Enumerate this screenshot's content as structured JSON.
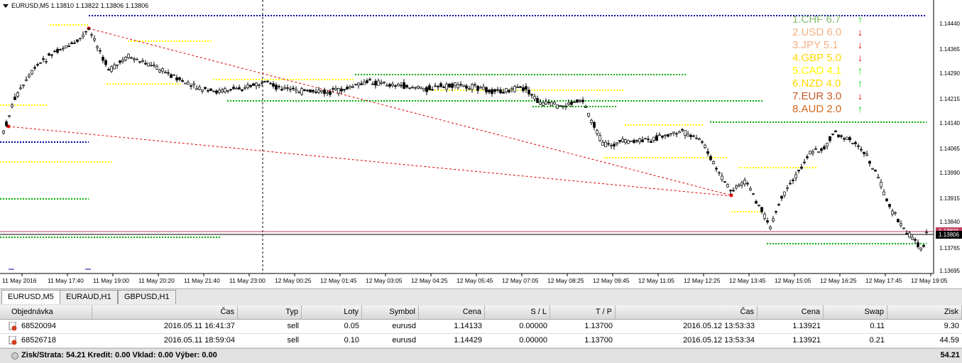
{
  "chart": {
    "title": "EURUSD,M5  1.13810 1.13822 1.13806 1.13806",
    "price_ticks": [
      "1.14440",
      "1.14365",
      "1.14290",
      "1.14215",
      "1.14140",
      "1.14065",
      "1.13990",
      "1.13915",
      "1.13840",
      "1.13765",
      "1.13695"
    ],
    "time_ticks": [
      "11 May 2016",
      "11 May 17:40",
      "11 May 19:00",
      "11 May 20:20",
      "11 May 21:40",
      "11 May 23:00",
      "12 May 00:25",
      "12 May 01:45",
      "12 May 03:05",
      "12 May 04:25",
      "12 May 05:45",
      "12 May 07:05",
      "12 May 08:25",
      "12 May 09:45",
      "12 May 11:05",
      "12 May 12:25",
      "12 May 13:45",
      "12 May 15:05",
      "12 May 16:25",
      "12 May 17:45",
      "12 May 19:05"
    ],
    "bid_price": "1.13806",
    "ask_tag": "1.13821",
    "colors": {
      "up_arrow": "#00e000",
      "down_arrow": "#e00000",
      "blue_dotted": "#0000a0",
      "yellow_dotted": "#ffff00",
      "green_dotted": "#00b000",
      "red_dashed": "#e00000"
    }
  },
  "strength": [
    {
      "label": "1.CHF  6.7",
      "color": "#88c070",
      "dir": "up"
    },
    {
      "label": "2.USD  6.0",
      "color": "#f4b183",
      "dir": "down"
    },
    {
      "label": "3.JPY  5.1",
      "color": "#f4b183",
      "dir": "down"
    },
    {
      "label": "4.GBP  5.0",
      "color": "#ffd700",
      "dir": "down"
    },
    {
      "label": "5.CAD  4.1",
      "color": "#ffff00",
      "dir": "up"
    },
    {
      "label": "6.NZD  4.0",
      "color": "#ffd700",
      "dir": "up"
    },
    {
      "label": "7.EUR  3.0",
      "color": "#c85a28",
      "dir": "down"
    },
    {
      "label": "8.AUD  2.0",
      "color": "#d2691e",
      "dir": "up"
    }
  ],
  "arrows": {
    "up": "🡑",
    "down": "🡓"
  },
  "tabs": [
    {
      "label": "EURUSD,M5",
      "active": true
    },
    {
      "label": "EURAUD,H1",
      "active": false
    },
    {
      "label": "GBPUSD,H1",
      "active": false
    }
  ],
  "table": {
    "headers": [
      "Objednávka",
      "Čas",
      "Typ",
      "Loty",
      "Symbol",
      "Cena",
      "S / L",
      "T / P",
      "Čas",
      "Cena",
      "Swap",
      "Zisk"
    ],
    "rows": [
      [
        "68520094",
        "2016.05.11 16:41:37",
        "sell",
        "0.05",
        "eurusd",
        "1.14133",
        "0.00000",
        "1.13700",
        "2016.05.12 13:53:33",
        "1.13921",
        "0.11",
        "9.30"
      ],
      [
        "68526718",
        "2016.05.11 18:59:04",
        "sell",
        "0.10",
        "eurusd",
        "1.14429",
        "0.00000",
        "1.13700",
        "2016.05.12 13:53:34",
        "1.13921",
        "0.21",
        "44.59"
      ]
    ],
    "summary": "Zisk/Strata: 54.21  Kredit: 0.00  Vklad: 0.00  Výber: 0.00",
    "summary_total": "54.21"
  }
}
